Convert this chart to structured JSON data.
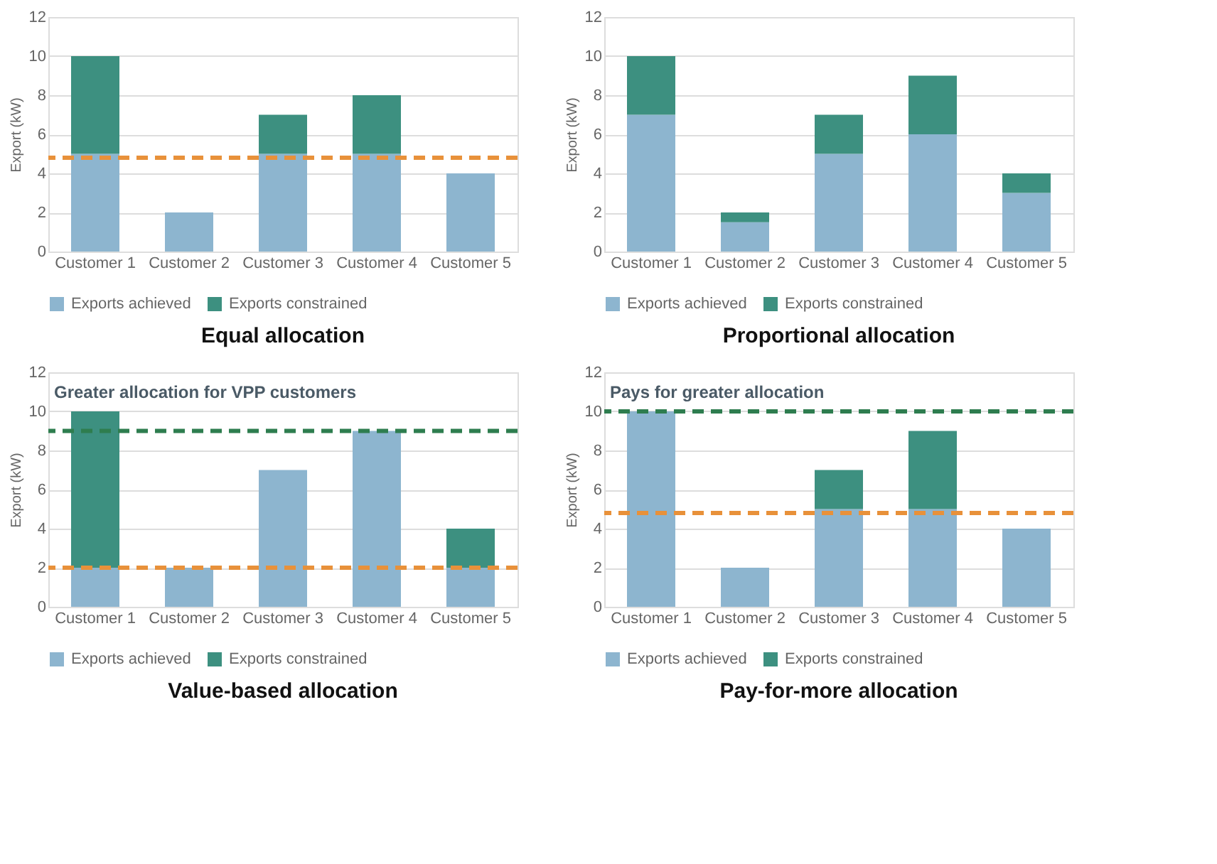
{
  "chart_data": [
    {
      "type": "bar",
      "title": "Equal allocation",
      "ylabel": "Export (kW)",
      "stacked": true,
      "categories": [
        "Customer 1",
        "Customer 2",
        "Customer 3",
        "Customer 4",
        "Customer 5"
      ],
      "series": [
        {
          "name": "Exports achieved",
          "color": "#8db5cf",
          "values": [
            5,
            2,
            5,
            5,
            4
          ]
        },
        {
          "name": "Exports constrained",
          "color": "#3d9080",
          "values": [
            5,
            0,
            2,
            3,
            0
          ]
        }
      ],
      "ylim": [
        0,
        12
      ],
      "yticks": [
        0,
        2,
        4,
        6,
        8,
        10,
        12
      ],
      "grid": "y",
      "legend": "bottom",
      "ref_lines": [
        {
          "axis": "y",
          "value": 4.8,
          "color": "#e8913a",
          "line_style": "dashed"
        }
      ]
    },
    {
      "type": "bar",
      "title": "Proportional allocation",
      "ylabel": "Export (kW)",
      "stacked": true,
      "categories": [
        "Customer 1",
        "Customer 2",
        "Customer 3",
        "Customer 4",
        "Customer 5"
      ],
      "series": [
        {
          "name": "Exports achieved",
          "color": "#8db5cf",
          "values": [
            7,
            1.5,
            5,
            6,
            3
          ]
        },
        {
          "name": "Exports constrained",
          "color": "#3d9080",
          "values": [
            3,
            0.5,
            2,
            3,
            1
          ]
        }
      ],
      "ylim": [
        0,
        12
      ],
      "yticks": [
        0,
        2,
        4,
        6,
        8,
        10,
        12
      ],
      "grid": "y",
      "legend": "bottom"
    },
    {
      "type": "bar",
      "title": "Value-based allocation",
      "ylabel": "Export (kW)",
      "stacked": true,
      "categories": [
        "Customer 1",
        "Customer 2",
        "Customer 3",
        "Customer 4",
        "Customer 5"
      ],
      "series": [
        {
          "name": "Exports achieved",
          "color": "#8db5cf",
          "values": [
            2,
            2,
            7,
            9,
            2
          ]
        },
        {
          "name": "Exports constrained",
          "color": "#3d9080",
          "values": [
            8,
            0,
            0,
            0,
            2
          ]
        }
      ],
      "ylim": [
        0,
        12
      ],
      "yticks": [
        0,
        2,
        4,
        6,
        8,
        10,
        12
      ],
      "grid": "y",
      "legend": "bottom",
      "ref_lines": [
        {
          "axis": "y",
          "value": 2,
          "color": "#e8913a",
          "line_style": "dashed"
        },
        {
          "axis": "y",
          "value": 9,
          "label": "Greater allocation for VPP customers",
          "color": "#2e7d4f",
          "line_style": "dashed"
        }
      ]
    },
    {
      "type": "bar",
      "title": "Pay-for-more allocation",
      "ylabel": "Export (kW)",
      "stacked": true,
      "categories": [
        "Customer 1",
        "Customer 2",
        "Customer 3",
        "Customer 4",
        "Customer 5"
      ],
      "series": [
        {
          "name": "Exports achieved",
          "color": "#8db5cf",
          "values": [
            10,
            2,
            5,
            5,
            4
          ]
        },
        {
          "name": "Exports constrained",
          "color": "#3d9080",
          "values": [
            0,
            0,
            2,
            4,
            0
          ]
        }
      ],
      "ylim": [
        0,
        12
      ],
      "yticks": [
        0,
        2,
        4,
        6,
        8,
        10,
        12
      ],
      "grid": "y",
      "legend": "bottom",
      "ref_lines": [
        {
          "axis": "y",
          "value": 4.8,
          "color": "#e8913a",
          "line_style": "dashed"
        },
        {
          "axis": "y",
          "value": 10,
          "label": "Pays for greater allocation",
          "color": "#2e7d4f",
          "line_style": "dashed"
        }
      ]
    }
  ]
}
